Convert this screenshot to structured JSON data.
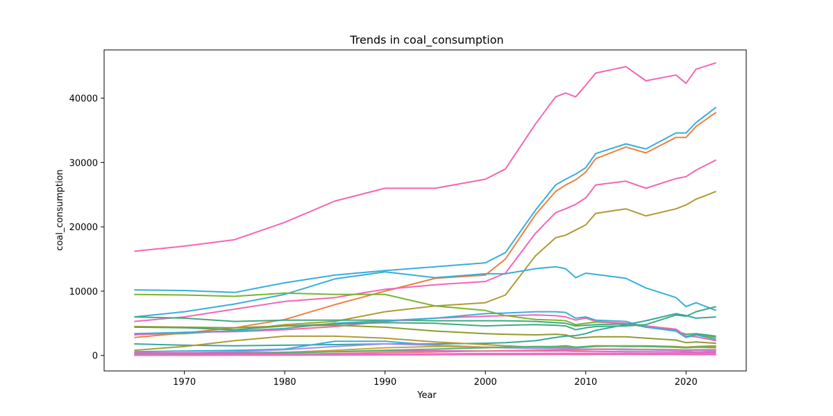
{
  "chart_data": {
    "type": "line",
    "title": "Trends in coal_consumption",
    "xlabel": "Year",
    "ylabel": "coal_consumption",
    "xlim": [
      1962,
      2026
    ],
    "ylim": [
      -2400,
      47500
    ],
    "x_ticks": [
      1970,
      1980,
      1990,
      2000,
      2010,
      2020
    ],
    "y_ticks": [
      0,
      10000,
      20000,
      30000,
      40000
    ],
    "grid": false,
    "legend": "none",
    "x": [
      1965,
      1970,
      1975,
      1980,
      1985,
      1990,
      1995,
      2000,
      2002,
      2005,
      2007,
      2008,
      2009,
      2010,
      2011,
      2014,
      2016,
      2019,
      2020,
      2021,
      2023
    ],
    "series": [
      {
        "color": "#f564b4",
        "values": [
          16200,
          17000,
          18000,
          20700,
          24000,
          26000,
          26000,
          27400,
          29000,
          36000,
          40200,
          40800,
          40200,
          42000,
          43900,
          44900,
          42700,
          43600,
          42300,
          44500,
          45500
        ]
      },
      {
        "color": "#36aeda",
        "values": [
          10200,
          10100,
          9800,
          11300,
          12500,
          13200,
          13800,
          14400,
          16000,
          22600,
          26500,
          27400,
          28200,
          29200,
          31400,
          32900,
          32100,
          34600,
          34600,
          36200,
          38600
        ]
      },
      {
        "color": "#ef7f3f",
        "values": [
          2800,
          3500,
          4300,
          5600,
          7900,
          10000,
          12000,
          12500,
          15000,
          21900,
          25500,
          26500,
          27300,
          28500,
          30600,
          32400,
          31500,
          33900,
          33900,
          35600,
          37800
        ]
      },
      {
        "color": "#f564b4",
        "values": [
          5300,
          6000,
          7200,
          8400,
          9000,
          10300,
          11000,
          11500,
          12800,
          19000,
          22200,
          22800,
          23500,
          24500,
          26500,
          27100,
          26000,
          27500,
          27800,
          28800,
          30400
        ]
      },
      {
        "color": "#b09a33",
        "values": [
          3300,
          3400,
          3900,
          4800,
          5300,
          6800,
          7700,
          8200,
          9400,
          15500,
          18300,
          18700,
          19500,
          20300,
          22100,
          22800,
          21700,
          22800,
          23400,
          24300,
          25500
        ]
      },
      {
        "color": "#36aeda",
        "values": [
          6000,
          6800,
          8000,
          9500,
          11900,
          13000,
          12100,
          12700,
          12700,
          13500,
          13800,
          13500,
          12100,
          12800,
          12600,
          12000,
          10500,
          9000,
          7600,
          8200,
          7000
        ]
      },
      {
        "color": "#78b42a",
        "values": [
          9500,
          9400,
          9200,
          9700,
          9500,
          9500,
          7700,
          7000,
          6200,
          5600,
          5500,
          5400,
          4800,
          5000,
          5200,
          5000,
          4400,
          3900,
          3000,
          3200,
          2800
        ]
      },
      {
        "color": "#3daa7e",
        "values": [
          6000,
          5800,
          5300,
          5500,
          5500,
          5500,
          5400,
          5400,
          5400,
          5300,
          5100,
          5000,
          4600,
          4700,
          4800,
          4900,
          4600,
          3800,
          3300,
          3400,
          3000
        ]
      },
      {
        "color": "#f564b4",
        "values": [
          3200,
          3600,
          3700,
          4000,
          4500,
          5300,
          5800,
          6100,
          6200,
          6300,
          6200,
          6000,
          5500,
          5800,
          5300,
          5000,
          4600,
          4100,
          3000,
          2900,
          2300
        ]
      },
      {
        "color": "#36aeda",
        "values": [
          3400,
          3600,
          3800,
          4200,
          5000,
          5400,
          5800,
          6500,
          6600,
          6800,
          6800,
          6700,
          5800,
          6000,
          5500,
          5300,
          4400,
          3800,
          2800,
          3200,
          2500
        ]
      },
      {
        "color": "#3daa7e",
        "values": [
          4400,
          4300,
          4000,
          4600,
          4900,
          5100,
          5000,
          4600,
          4700,
          4800,
          4700,
          4600,
          4000,
          4300,
          4500,
          4600,
          4800,
          6300,
          6100,
          6800,
          7600
        ]
      },
      {
        "color": "#8e9b2e",
        "values": [
          4500,
          4400,
          4300,
          4600,
          4700,
          4400,
          3800,
          3400,
          3300,
          3200,
          3300,
          3200,
          2700,
          2800,
          2900,
          2900,
          2700,
          2400,
          2000,
          2100,
          1900
        ]
      },
      {
        "color": "#34a7a0",
        "values": [
          1800,
          1600,
          1500,
          1600,
          1700,
          1800,
          1800,
          1900,
          2000,
          2300,
          2800,
          3000,
          3100,
          3400,
          3900,
          4800,
          5400,
          6500,
          6200,
          5800,
          6000
        ]
      },
      {
        "color": "#b09a33",
        "values": [
          800,
          1400,
          2300,
          3000,
          3000,
          2700,
          2100,
          1700,
          1500,
          1300,
          1300,
          1300,
          1200,
          1300,
          1400,
          1500,
          1500,
          1400,
          1300,
          1400,
          1500
        ]
      },
      {
        "color": "#36aeda",
        "values": [
          600,
          700,
          800,
          1000,
          2200,
          2200,
          1600,
          1300,
          1200,
          1200,
          1100,
          1100,
          1000,
          1000,
          1000,
          900,
          900,
          800,
          700,
          800,
          700
        ]
      },
      {
        "color": "#9e8ef2",
        "values": [
          300,
          400,
          600,
          900,
          1400,
          1800,
          1600,
          1300,
          1200,
          1100,
          1100,
          1100,
          1000,
          1000,
          1000,
          1000,
          900,
          800,
          700,
          800,
          700
        ]
      },
      {
        "color": "#c9a33a",
        "values": [
          200,
          250,
          350,
          500,
          800,
          1200,
          1400,
          1300,
          1300,
          1300,
          1400,
          1500,
          1300,
          1400,
          1500,
          1500,
          1400,
          1300,
          1200,
          1300,
          1200
        ]
      },
      {
        "color": "#e066c8",
        "values": [
          400,
          420,
          450,
          500,
          600,
          700,
          750,
          700,
          700,
          700,
          700,
          700,
          650,
          650,
          650,
          600,
          600,
          550,
          500,
          520,
          500
        ]
      },
      {
        "color": "#50b46e",
        "values": [
          150,
          200,
          300,
          400,
          600,
          800,
          1000,
          1200,
          1300,
          1400,
          1400,
          1500,
          1300,
          1400,
          1500,
          1400,
          1400,
          1300,
          1200,
          1300,
          1300
        ]
      },
      {
        "color": "#f0708e",
        "values": [
          100,
          120,
          150,
          200,
          300,
          450,
          550,
          700,
          750,
          800,
          850,
          900,
          850,
          900,
          950,
          950,
          950,
          900,
          850,
          900,
          900
        ]
      },
      {
        "color": "#ea6cc0",
        "values": [
          50,
          60,
          80,
          100,
          150,
          200,
          250,
          300,
          300,
          320,
          340,
          350,
          330,
          340,
          350,
          350,
          340,
          320,
          300,
          310,
          300
        ]
      },
      {
        "color": "#ea6cc0",
        "values": [
          20,
          30,
          40,
          50,
          70,
          90,
          110,
          130,
          130,
          140,
          150,
          150,
          140,
          145,
          150,
          150,
          145,
          140,
          130,
          135,
          130
        ]
      }
    ]
  }
}
